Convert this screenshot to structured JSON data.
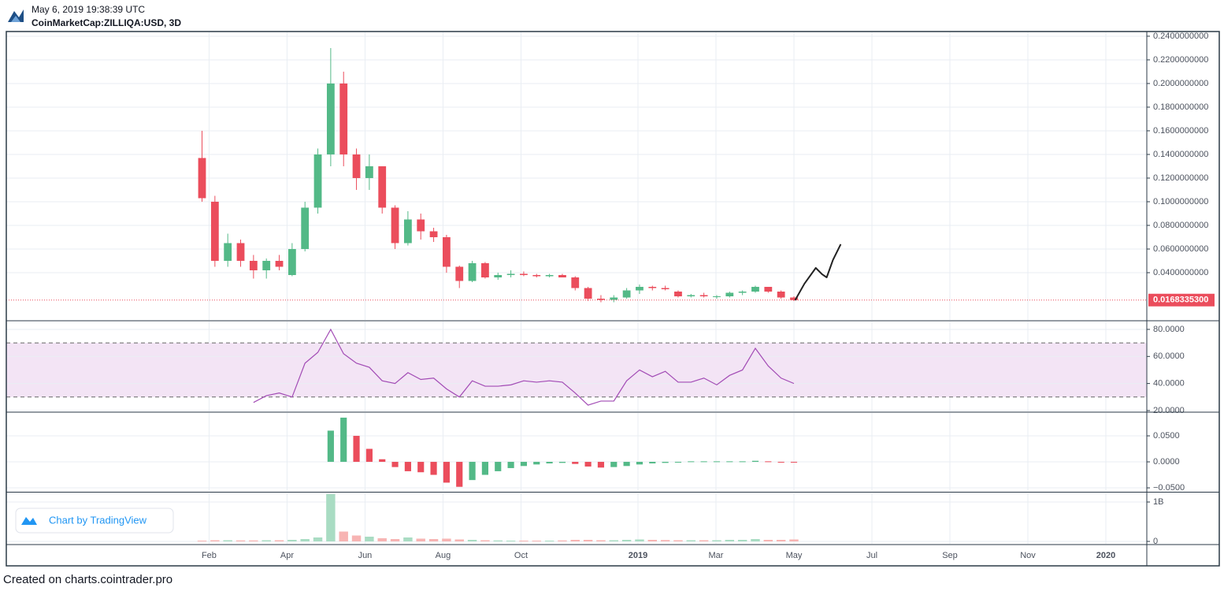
{
  "chart_data": {
    "type": "candlestick",
    "title": "May 6, 2019 19:38:39 UTC",
    "subtitle": "CoinMarketCap:ZILLIQA:USD, 3D",
    "branding": "Chart by TradingView",
    "footer": "Created on charts.cointrader.pro",
    "grid": true,
    "x": [
      0.82,
      1.15,
      1.48,
      1.81,
      2.14,
      2.47,
      2.8,
      3.13,
      3.46,
      3.79,
      4.12,
      4.45,
      4.78,
      5.11,
      5.44,
      5.77,
      6.1,
      6.43,
      6.76,
      7.09,
      7.42,
      7.75,
      8.08,
      8.41,
      8.74,
      9.07,
      9.4,
      9.73,
      10.06,
      10.39,
      10.72,
      11.05,
      11.38,
      11.71,
      12.04,
      12.37,
      12.7,
      13.03,
      13.36,
      13.69,
      14.02,
      14.35,
      14.68,
      15.01,
      15.34,
      15.67,
      16.0
    ],
    "xlim": [
      -4.2,
      25.05
    ],
    "xticks": [
      {
        "value": 1,
        "label": "Feb"
      },
      {
        "value": 3,
        "label": "Apr"
      },
      {
        "value": 5,
        "label": "Jun"
      },
      {
        "value": 7,
        "label": "Aug"
      },
      {
        "value": 9,
        "label": "Oct"
      },
      {
        "value": 12,
        "label": "2019"
      },
      {
        "value": 14,
        "label": "Mar"
      },
      {
        "value": 16,
        "label": "May"
      },
      {
        "value": 18,
        "label": "Jul"
      },
      {
        "value": 20,
        "label": "Sep"
      },
      {
        "value": 22,
        "label": "Nov"
      },
      {
        "value": 24,
        "label": "2020"
      }
    ],
    "panes": [
      {
        "type": "candlestick",
        "up_color": "#53b987",
        "down_color": "#eb4d5c",
        "open": [
          0.137,
          0.1,
          0.05,
          0.065,
          0.05,
          0.042,
          0.05,
          0.038,
          0.06,
          0.095,
          0.14,
          0.2,
          0.14,
          0.12,
          0.13,
          0.095,
          0.065,
          0.085,
          0.075,
          0.07,
          0.045,
          0.033,
          0.048,
          0.036,
          0.038,
          0.039,
          0.038,
          0.037,
          0.038,
          0.036,
          0.027,
          0.018,
          0.017,
          0.019,
          0.025,
          0.028,
          0.027,
          0.024,
          0.02,
          0.021,
          0.02,
          0.02,
          0.023,
          0.024,
          0.028,
          0.024,
          0.019
        ],
        "high": [
          0.16,
          0.105,
          0.073,
          0.068,
          0.055,
          0.052,
          0.055,
          0.065,
          0.1,
          0.145,
          0.23,
          0.21,
          0.145,
          0.14,
          0.13,
          0.097,
          0.092,
          0.09,
          0.078,
          0.072,
          0.046,
          0.05,
          0.049,
          0.04,
          0.042,
          0.041,
          0.039,
          0.039,
          0.039,
          0.037,
          0.028,
          0.021,
          0.021,
          0.027,
          0.03,
          0.029,
          0.029,
          0.025,
          0.022,
          0.023,
          0.021,
          0.024,
          0.025,
          0.029,
          0.028,
          0.025,
          0.02
        ],
        "low": [
          0.1,
          0.045,
          0.045,
          0.045,
          0.035,
          0.035,
          0.042,
          0.037,
          0.058,
          0.09,
          0.13,
          0.13,
          0.11,
          0.11,
          0.09,
          0.06,
          0.063,
          0.068,
          0.066,
          0.04,
          0.027,
          0.032,
          0.035,
          0.034,
          0.036,
          0.037,
          0.036,
          0.036,
          0.036,
          0.025,
          0.016,
          0.015,
          0.015,
          0.018,
          0.022,
          0.025,
          0.025,
          0.019,
          0.019,
          0.019,
          0.018,
          0.019,
          0.021,
          0.023,
          0.023,
          0.018,
          0.016
        ],
        "close": [
          0.103,
          0.05,
          0.065,
          0.05,
          0.042,
          0.05,
          0.045,
          0.06,
          0.095,
          0.14,
          0.2,
          0.14,
          0.12,
          0.13,
          0.095,
          0.065,
          0.085,
          0.075,
          0.07,
          0.045,
          0.033,
          0.048,
          0.036,
          0.038,
          0.039,
          0.038,
          0.037,
          0.038,
          0.036,
          0.027,
          0.018,
          0.017,
          0.019,
          0.025,
          0.028,
          0.027,
          0.026,
          0.02,
          0.021,
          0.02,
          0.02,
          0.023,
          0.024,
          0.028,
          0.024,
          0.019,
          0.0168
        ],
        "last_value": {
          "value": 0.01683353,
          "label": "0.0168335300"
        },
        "last_color": "#eb4d5c",
        "projection": {
          "color": "#222222",
          "x": [
            16.03,
            16.27,
            16.56,
            16.72,
            16.84,
            17.0,
            17.2
          ],
          "values": [
            0.0167,
            0.0307,
            0.044,
            0.0387,
            0.036,
            0.0507,
            0.064
          ]
        },
        "ylim": [
          0,
          0.2433
        ],
        "yticks": [
          {
            "value": 0.04,
            "label": "0.0400000000"
          },
          {
            "value": 0.06,
            "label": "0.0600000000"
          },
          {
            "value": 0.08,
            "label": "0.0800000000"
          },
          {
            "value": 0.1,
            "label": "0.1000000000"
          },
          {
            "value": 0.12,
            "label": "0.1200000000"
          },
          {
            "value": 0.14,
            "label": "0.1400000000"
          },
          {
            "value": 0.16,
            "label": "0.1600000000"
          },
          {
            "value": 0.18,
            "label": "0.1800000000"
          },
          {
            "value": 0.2,
            "label": "0.2000000000"
          },
          {
            "value": 0.22,
            "label": "0.2200000000"
          },
          {
            "value": 0.24,
            "label": "0.2400000000"
          }
        ]
      },
      {
        "type": "line",
        "color": "#a24bb5",
        "band": [
          30,
          70
        ],
        "band_color": "#f3e4f5",
        "values": [
          null,
          null,
          null,
          null,
          26,
          31,
          33,
          30,
          55,
          63,
          80,
          62,
          55,
          52,
          42,
          40,
          48,
          43,
          44,
          36,
          30,
          42,
          38,
          38,
          39,
          42,
          41,
          42,
          41,
          33,
          24,
          27,
          27,
          42,
          50,
          45,
          49,
          41,
          41,
          44,
          39,
          46,
          50,
          66,
          53,
          44,
          40
        ],
        "ylim": [
          19.4,
          85.8
        ],
        "yticks": [
          {
            "value": 20,
            "label": "20.0000"
          },
          {
            "value": 40,
            "label": "40.0000"
          },
          {
            "value": 60,
            "label": "60.0000"
          },
          {
            "value": 80,
            "label": "80.0000"
          }
        ]
      },
      {
        "type": "histogram",
        "up_color": "#53b987",
        "down_color": "#eb4d5c",
        "values": [
          null,
          null,
          null,
          null,
          null,
          null,
          null,
          null,
          null,
          null,
          0.06,
          0.085,
          0.05,
          0.025,
          0.005,
          -0.01,
          -0.018,
          -0.02,
          -0.025,
          -0.04,
          -0.048,
          -0.035,
          -0.025,
          -0.018,
          -0.012,
          -0.008,
          -0.005,
          -0.003,
          -0.002,
          -0.004,
          -0.009,
          -0.011,
          -0.01,
          -0.008,
          -0.005,
          -0.003,
          -0.002,
          -0.001,
          0.001,
          0.001,
          0.001,
          0.001,
          0.001,
          0.002,
          0.001,
          0.0,
          -0.001
        ],
        "ylim": [
          -0.056,
          0.094
        ],
        "yticks": [
          {
            "value": -0.05,
            "label": "−0.0500"
          },
          {
            "value": 0,
            "label": "0.0000"
          },
          {
            "value": 0.05,
            "label": "0.0500"
          }
        ]
      },
      {
        "type": "bar",
        "up_color": "#a9dcc3",
        "down_color": "#f7b4b3",
        "values": [
          20000000,
          30000000,
          30000000,
          25000000,
          25000000,
          30000000,
          30000000,
          40000000,
          60000000,
          100000000,
          1200000000,
          250000000,
          150000000,
          120000000,
          80000000,
          60000000,
          100000000,
          70000000,
          60000000,
          70000000,
          50000000,
          40000000,
          30000000,
          25000000,
          20000000,
          20000000,
          20000000,
          20000000,
          25000000,
          40000000,
          40000000,
          30000000,
          30000000,
          40000000,
          50000000,
          40000000,
          35000000,
          30000000,
          30000000,
          30000000,
          30000000,
          40000000,
          40000000,
          60000000,
          40000000,
          40000000,
          50000000
        ],
        "ylim": [
          -60000000,
          1220000000
        ],
        "yticks": [
          0,
          {
            "value": 1000000000,
            "label": "1B"
          }
        ]
      }
    ]
  }
}
